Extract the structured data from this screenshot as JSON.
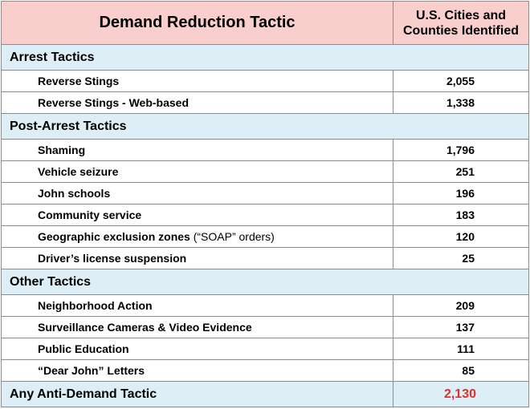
{
  "header": {
    "tactic_col": "Demand Reduction Tactic",
    "count_col_line1": "U.S. Cities and",
    "count_col_line2": "Counties Identified"
  },
  "sections": [
    {
      "title": "Arrest  Tactics",
      "rows": [
        {
          "label": "Reverse Stings",
          "note": "",
          "value": "2,055"
        },
        {
          "label": "Reverse Stings - Web-based",
          "note": "",
          "value": "1,338"
        }
      ]
    },
    {
      "title": "Post-Arrest  Tactics",
      "rows": [
        {
          "label": "Shaming",
          "note": "",
          "value": "1,796"
        },
        {
          "label": "Vehicle seizure",
          "note": "",
          "value": "251"
        },
        {
          "label": "John schools",
          "note": "",
          "value": "196"
        },
        {
          "label": "Community  service",
          "note": "",
          "value": "183"
        },
        {
          "label": "Geographic exclusion zones",
          "note": "(“SOAP” orders)",
          "value": "120"
        },
        {
          "label": "Driver’s license suspension",
          "note": "",
          "value": "25"
        }
      ]
    },
    {
      "title": "Other Tactics",
      "rows": [
        {
          "label": "Neighborhood Action",
          "note": "",
          "value": "209"
        },
        {
          "label": "Surveillance Cameras & Video Evidence",
          "note": "",
          "value": "137"
        },
        {
          "label": "Public Education",
          "note": "",
          "value": "111"
        },
        {
          "label": "“Dear John” Letters",
          "note": "",
          "value": "85"
        }
      ]
    }
  ],
  "total": {
    "label": "Any Anti-Demand  Tactic",
    "value": "2,130"
  },
  "colors": {
    "header_bg": "#f8cfcd",
    "section_bg": "#deeef6",
    "total_value": "#e0302a",
    "border": "#8c8c8c"
  }
}
